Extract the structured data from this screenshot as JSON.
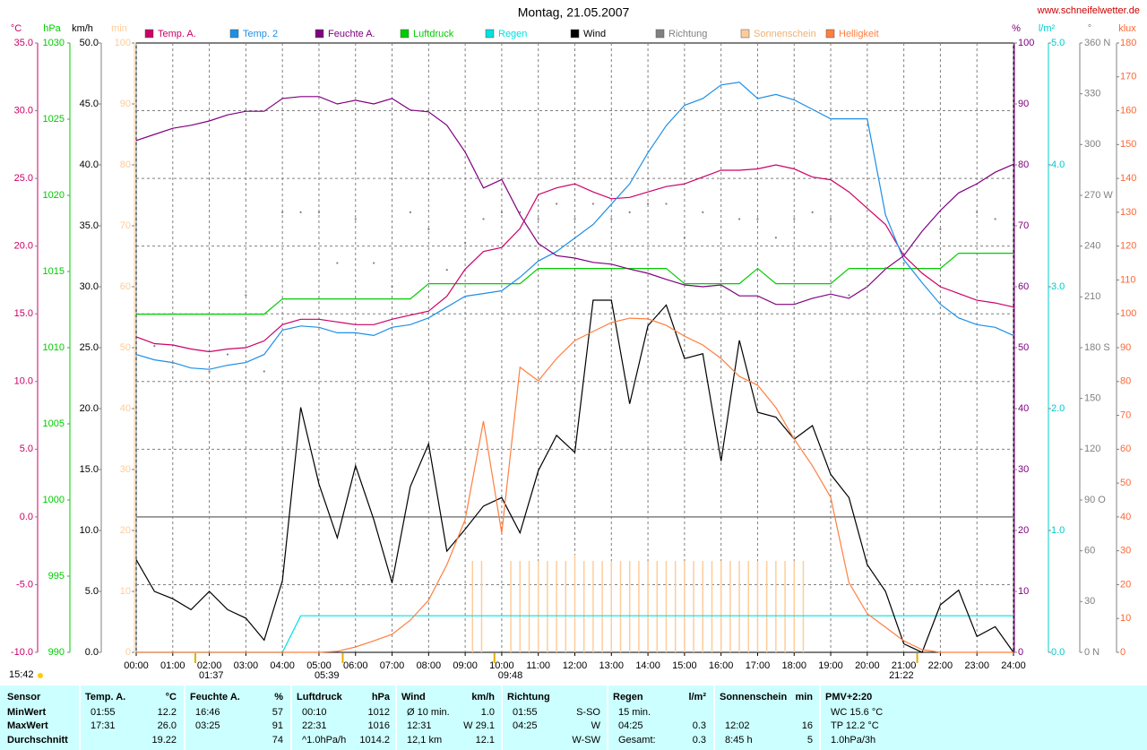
{
  "chart_data": {
    "type": "line",
    "title": "Montag, 21.05.2007",
    "source": "www.schneifelwetter.de",
    "updated": "15:42",
    "xlim": [
      0,
      24
    ],
    "xticks": [
      {
        "value": 0,
        "label": "00:00"
      },
      {
        "value": 1,
        "label": "01:00"
      },
      {
        "value": 2,
        "label": "02:00"
      },
      {
        "value": 3,
        "label": "03:00"
      },
      {
        "value": 4,
        "label": "04:00"
      },
      {
        "value": 5,
        "label": "05:00"
      },
      {
        "value": 6,
        "label": "06:00"
      },
      {
        "value": 7,
        "label": "07:00"
      },
      {
        "value": 8,
        "label": "08:00"
      },
      {
        "value": 9,
        "label": "09:00"
      },
      {
        "value": 10,
        "label": "10:00"
      },
      {
        "value": 11,
        "label": "11:00"
      },
      {
        "value": 12,
        "label": "12:00"
      },
      {
        "value": 13,
        "label": "13:00"
      },
      {
        "value": 14,
        "label": "14:00"
      },
      {
        "value": 15,
        "label": "15:00"
      },
      {
        "value": 16,
        "label": "16:00"
      },
      {
        "value": 17,
        "label": "17:00"
      },
      {
        "value": 18,
        "label": "18:00"
      },
      {
        "value": 19,
        "label": "19:00"
      },
      {
        "value": 20,
        "label": "20:00"
      },
      {
        "value": 21,
        "label": "21:00"
      },
      {
        "value": 22,
        "label": "22:00"
      },
      {
        "value": 23,
        "label": "23:00"
      },
      {
        "value": 24,
        "label": "24:00"
      }
    ],
    "grid": true,
    "axes": [
      {
        "label": "°C",
        "color": "#cc0066",
        "lim": [
          -10,
          35
        ],
        "grid": true,
        "ticks": [
          {
            "value": -10,
            "label": "-10.0"
          },
          {
            "value": -5,
            "label": "-5.0"
          },
          {
            "value": 0,
            "label": "0.0"
          },
          {
            "value": 5,
            "label": "5.0"
          },
          {
            "value": 10,
            "label": "10.0"
          },
          {
            "value": 15,
            "label": "15.0"
          },
          {
            "value": 20,
            "label": "20.0"
          },
          {
            "value": 25,
            "label": "25.0"
          },
          {
            "value": 30,
            "label": "30.0"
          },
          {
            "value": 35,
            "label": "35.0"
          }
        ]
      },
      {
        "label": "hPa",
        "color": "#00cc00",
        "lim": [
          990,
          1030
        ],
        "ticks": [
          990,
          995,
          1000,
          1005,
          1010,
          1015,
          1020,
          1025,
          1030
        ]
      },
      {
        "label": "km/h",
        "color": "#000000",
        "lim": [
          0,
          50
        ],
        "ticks": [
          {
            "value": 0,
            "label": "0.0"
          },
          {
            "value": 5,
            "label": "5.0"
          },
          {
            "value": 10,
            "label": "10.0"
          },
          {
            "value": 15,
            "label": "15.0"
          },
          {
            "value": 20,
            "label": "20.0"
          },
          {
            "value": 25,
            "label": "25.0"
          },
          {
            "value": 30,
            "label": "30.0"
          },
          {
            "value": 35,
            "label": "35.0"
          },
          {
            "value": 40,
            "label": "40.0"
          },
          {
            "value": 45,
            "label": "45.0"
          },
          {
            "value": 50,
            "label": "50.0"
          }
        ]
      },
      {
        "label": "min",
        "color": "#ffcc99",
        "lim": [
          0,
          100
        ],
        "ticks": [
          0,
          10,
          20,
          30,
          40,
          50,
          60,
          70,
          80,
          90,
          100
        ]
      },
      {
        "label": "%",
        "color": "#800080",
        "lim": [
          0,
          100
        ],
        "ticks": [
          0,
          10,
          20,
          30,
          40,
          50,
          60,
          70,
          80,
          90,
          100
        ]
      },
      {
        "label": "l/m²",
        "color": "#00cccc",
        "lim": [
          0,
          5
        ],
        "ticks": [
          {
            "value": 0,
            "label": "0.0"
          },
          {
            "value": 1,
            "label": "1.0"
          },
          {
            "value": 2,
            "label": "2.0"
          },
          {
            "value": 3,
            "label": "3.0"
          },
          {
            "value": 4,
            "label": "4.0"
          },
          {
            "value": 5,
            "label": "5.0"
          }
        ]
      },
      {
        "label": "°",
        "color": "#808080",
        "lim": [
          0,
          360
        ],
        "ticks": [
          {
            "value": 0,
            "label": "0 N"
          },
          30,
          60,
          {
            "value": 90,
            "label": "90 O"
          },
          120,
          150,
          {
            "value": 180,
            "label": "180 S"
          },
          210,
          240,
          {
            "value": 270,
            "label": "270 W"
          },
          300,
          330,
          {
            "value": 360,
            "label": "360 N"
          }
        ]
      },
      {
        "label": "klux",
        "color": "#ff6633",
        "lim": [
          0,
          180
        ],
        "ticks": [
          0,
          10,
          20,
          30,
          40,
          50,
          60,
          70,
          80,
          90,
          100,
          110,
          120,
          130,
          140,
          150,
          160,
          170,
          180
        ]
      }
    ],
    "x": [
      0,
      0.5,
      1,
      1.5,
      2,
      2.5,
      3,
      3.5,
      4,
      4.5,
      5,
      5.5,
      6,
      6.5,
      7,
      7.5,
      8,
      8.5,
      9,
      9.5,
      10,
      10.5,
      11,
      11.5,
      12,
      12.5,
      13,
      13.5,
      14,
      14.5,
      15,
      15.5,
      16,
      16.5,
      17,
      17.5,
      18,
      18.5,
      19,
      19.5,
      20,
      20.5,
      21,
      21.5,
      22,
      22.5,
      23,
      23.5,
      24
    ],
    "series": [
      {
        "name": "Temp. A.",
        "color": "#cc0066",
        "axis": 0,
        "mark": "line",
        "values": [
          13.3,
          12.8,
          12.7,
          12.4,
          12.2,
          12.4,
          12.5,
          13.0,
          14.2,
          14.6,
          14.6,
          14.4,
          14.2,
          14.2,
          14.6,
          14.9,
          15.2,
          16.3,
          18.3,
          19.6,
          19.9,
          21.3,
          23.8,
          24.3,
          24.6,
          24.0,
          23.5,
          23.6,
          24.0,
          24.4,
          24.6,
          25.1,
          25.6,
          25.6,
          25.7,
          26.0,
          25.7,
          25.1,
          24.9,
          24.0,
          22.8,
          21.6,
          19.3,
          18.0,
          17.0,
          16.5,
          16.0,
          15.8,
          15.5
        ]
      },
      {
        "name": "Temp. 2",
        "color": "#1e8fe6",
        "axis": 0,
        "mark": "line",
        "values": [
          12.0,
          11.6,
          11.4,
          11.0,
          10.9,
          11.2,
          11.4,
          12.0,
          13.8,
          14.1,
          14.0,
          13.6,
          13.6,
          13.4,
          14.0,
          14.2,
          14.7,
          15.5,
          16.3,
          16.5,
          16.7,
          17.7,
          18.9,
          19.6,
          20.6,
          21.6,
          23.1,
          24.6,
          26.9,
          28.9,
          30.4,
          30.9,
          31.9,
          32.1,
          30.9,
          31.2,
          30.8,
          30.1,
          29.4,
          29.4,
          29.4,
          22.3,
          19.0,
          17.3,
          15.7,
          14.7,
          14.2,
          14.0,
          13.4
        ]
      },
      {
        "name": "Feuchte A.",
        "color": "#800080",
        "axis": 4,
        "mark": "line",
        "values": [
          84.0,
          85.0,
          86.0,
          86.5,
          87.2,
          88.2,
          88.8,
          88.8,
          90.9,
          91.2,
          91.2,
          90.0,
          90.6,
          90.0,
          90.9,
          89.0,
          88.7,
          86.5,
          82.1,
          76.2,
          77.6,
          71.8,
          67.1,
          65.1,
          64.7,
          64.0,
          63.7,
          62.9,
          62.2,
          61.2,
          60.3,
          60.0,
          60.3,
          58.5,
          58.5,
          57.1,
          57.1,
          58.1,
          58.8,
          58.1,
          60.0,
          62.9,
          65.1,
          69.1,
          72.5,
          75.4,
          76.9,
          78.8,
          80.1
        ]
      },
      {
        "name": "Luftdruck",
        "color": "#00cc00",
        "axis": 1,
        "mark": "line",
        "values": [
          1012.2,
          1012.2,
          1012.2,
          1012.2,
          1012.2,
          1012.2,
          1012.2,
          1012.2,
          1013.2,
          1013.2,
          1013.2,
          1013.2,
          1013.2,
          1013.2,
          1013.2,
          1013.2,
          1014.2,
          1014.2,
          1014.2,
          1014.2,
          1014.2,
          1014.2,
          1015.2,
          1015.2,
          1015.2,
          1015.2,
          1015.2,
          1015.2,
          1015.2,
          1015.2,
          1014.2,
          1014.2,
          1014.2,
          1014.2,
          1015.2,
          1014.2,
          1014.2,
          1014.2,
          1014.2,
          1015.2,
          1015.2,
          1015.2,
          1015.2,
          1015.2,
          1015.2,
          1016.2,
          1016.2,
          1016.2,
          1016.2
        ]
      },
      {
        "name": "Regen",
        "color": "#00e0e0",
        "axis": 5,
        "mark": "line",
        "values": [
          0,
          0,
          0,
          0,
          0,
          0,
          0,
          0,
          0,
          0.3,
          0.3,
          0.3,
          0.3,
          0.3,
          0.3,
          0.3,
          0.3,
          0.3,
          0.3,
          0.3,
          0.3,
          0.3,
          0.3,
          0.3,
          0.3,
          0.3,
          0.3,
          0.3,
          0.3,
          0.3,
          0.3,
          0.3,
          0.3,
          0.3,
          0.3,
          0.3,
          0.3,
          0.3,
          0.3,
          0.3,
          0.3,
          0.3,
          0.3,
          0.3,
          0.3,
          0.3,
          0.3,
          0.3,
          0.3
        ]
      },
      {
        "name": "Wind",
        "color": "#000000",
        "axis": 2,
        "mark": "line",
        "values": [
          7.6,
          5.0,
          4.4,
          3.5,
          5.0,
          3.5,
          2.8,
          1.0,
          5.9,
          20.1,
          13.8,
          9.4,
          15.3,
          10.9,
          5.7,
          13.6,
          17.1,
          8.3,
          10.1,
          12.0,
          12.7,
          9.8,
          14.9,
          17.8,
          16.4,
          28.9,
          28.9,
          20.4,
          26.8,
          28.5,
          24.1,
          24.5,
          15.7,
          25.6,
          19.7,
          19.3,
          17.5,
          18.6,
          14.6,
          12.7,
          7.2,
          5.0,
          0.7,
          0,
          3.9,
          5.1,
          1.3,
          2.1,
          0
        ]
      },
      {
        "name": "Richtung",
        "color": "#808080",
        "axis": 6,
        "mark": "dot",
        "values": [
          null,
          181,
          171,
          null,
          166,
          176,
          211,
          166,
          260,
          260,
          260,
          230,
          256,
          230,
          216,
          260,
          250,
          226,
          242,
          256,
          260,
          260,
          256,
          265,
          256,
          265,
          256,
          260,
          265,
          265,
          245,
          260,
          226,
          256,
          256,
          245,
          256,
          260,
          256,
          211,
          216,
          227,
          230,
          null,
          250,
          null,
          260,
          256,
          null
        ]
      },
      {
        "name": "Sonnenschein",
        "color": "#ffcc99",
        "axis": 3,
        "mark": "bar",
        "x": [
          9.2,
          9.45,
          10.25,
          10.5,
          10.75,
          11,
          11.25,
          11.5,
          11.75,
          12,
          12.25,
          12.5,
          12.75,
          13,
          13.25,
          13.5,
          13.75,
          14,
          14.25,
          14.5,
          14.75,
          15,
          15.25,
          15.5,
          15.75,
          16,
          16.25,
          16.5,
          16.75,
          17,
          17.25,
          17.5,
          17.75,
          18,
          18.25
        ],
        "values": [
          15,
          15,
          15,
          15,
          15,
          15,
          15,
          15,
          15,
          16,
          15,
          15,
          15,
          15,
          15,
          15,
          15,
          15,
          15,
          15,
          15,
          15,
          15,
          15,
          15,
          15,
          15,
          15,
          15,
          15,
          15,
          15,
          15,
          15,
          15
        ]
      },
      {
        "name": "Helligkeit",
        "color": "#ff7f40",
        "axis": 7,
        "mark": "line",
        "values": [
          0,
          0,
          0,
          0,
          0,
          0,
          0,
          0,
          0,
          0,
          0,
          0.3,
          1.6,
          3.4,
          5.3,
          9.5,
          15.4,
          25.9,
          39.2,
          68.3,
          35.2,
          84.2,
          80.2,
          86.8,
          92.1,
          94.8,
          97.4,
          98.7,
          98.5,
          96.6,
          93.4,
          90.8,
          86.8,
          81.5,
          78.9,
          72.3,
          63.0,
          55.1,
          45.8,
          20.6,
          11.4,
          7.4,
          3.4,
          0.8,
          0,
          0,
          0,
          0,
          0
        ]
      }
    ],
    "annotations": [
      {
        "text": "01:37",
        "x": 1.617
      },
      {
        "text": "05:39",
        "x": 5.65
      },
      {
        "text": "09:48",
        "x": 9.8
      },
      {
        "text": "21:22",
        "x": 21.367
      }
    ]
  },
  "table": {
    "first": "Sensor",
    "headers": [
      {
        "name": "Temp. A.",
        "unit": "°C"
      },
      {
        "name": "Feuchte A.",
        "unit": "%"
      },
      {
        "name": "Luftdruck",
        "unit": "hPa"
      },
      {
        "name": "Wind",
        "unit": "km/h"
      },
      {
        "name": "Richtung"
      },
      {
        "name": "Regen",
        "unit": "l/m²"
      },
      {
        "name": "Sonnenschein",
        "unit": "min"
      },
      {
        "name": "PMV+2:20"
      }
    ],
    "row_labels": [
      "MinWert",
      "MaxWert",
      "Durchschnitt"
    ],
    "cells": [
      [
        {
          "l": "01:55",
          "r": "12.2"
        },
        {
          "l": "16:46",
          "r": "57"
        },
        {
          "l": "00:10",
          "r": "1012"
        },
        {
          "l": "Ø 10 min.",
          "r": "1.0"
        },
        {
          "l": "01:55",
          "r": "S-SO"
        },
        {
          "l": "15 min."
        },
        {},
        {
          "l": "WC 15.6 °C"
        }
      ],
      [
        {
          "l": "17:31",
          "r": "26.0"
        },
        {
          "l": "03:25",
          "r": "91"
        },
        {
          "l": "22:31",
          "r": "1016"
        },
        {
          "l": "12:31",
          "r": "W 29.1"
        },
        {
          "l": "04:25",
          "r": "W"
        },
        {
          "l": "04:25",
          "r": "0.3"
        },
        {
          "l": "12:02",
          "r": "16"
        },
        {
          "l": "TP 12.2 °C"
        }
      ],
      [
        {
          "r": "19.22"
        },
        {
          "r": "74"
        },
        {
          "l": "^1.0hPa/h",
          "r": "1014.2"
        },
        {
          "l": "12,1 km",
          "r": "12.1"
        },
        {
          "r": "W-SW"
        },
        {
          "l": "Gesamt:",
          "r": "0.3"
        },
        {
          "l": "8:45 h",
          "r": "5"
        },
        {
          "l": "1.0hPa/3h"
        }
      ]
    ]
  }
}
